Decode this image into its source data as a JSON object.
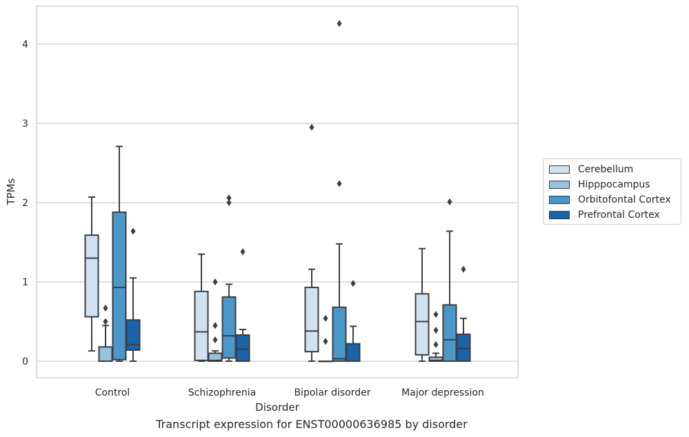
{
  "chart_data": {
    "type": "box",
    "xlabel": "Disorder",
    "ylabel": "TPMs",
    "caption": "Transcript expression for ENST00000636985 by disorder",
    "categories": [
      "Control",
      "Schizophrenia",
      "Bipolar disorder",
      "Major depression"
    ],
    "ylim": [
      -0.2,
      4.5
    ],
    "yticks": [
      0,
      1,
      2,
      3,
      4
    ],
    "grid": "horizontal",
    "legend_position": "right",
    "series": [
      {
        "name": "Cerebellum",
        "color": "#d0e1f2",
        "boxes": [
          {
            "whislo": 0.13,
            "q1": 0.56,
            "med": 1.3,
            "q3": 1.59,
            "whishi": 2.07,
            "fliers": []
          },
          {
            "whislo": 0.0,
            "q1": 0.01,
            "med": 0.37,
            "q3": 0.88,
            "whishi": 1.35,
            "fliers": []
          },
          {
            "whislo": 0.0,
            "q1": 0.12,
            "med": 0.38,
            "q3": 0.93,
            "whishi": 1.16,
            "fliers": [
              2.95
            ]
          },
          {
            "whislo": 0.0,
            "q1": 0.08,
            "med": 0.5,
            "q3": 0.85,
            "whishi": 1.42,
            "fliers": []
          }
        ]
      },
      {
        "name": "Hipppocampus",
        "color": "#94c4df",
        "boxes": [
          {
            "whislo": 0.0,
            "q1": 0.0,
            "med": 0.0,
            "q3": 0.18,
            "whishi": 0.45,
            "fliers": [
              0.5,
              0.67
            ]
          },
          {
            "whislo": 0.0,
            "q1": 0.0,
            "med": 0.01,
            "q3": 0.1,
            "whishi": 0.13,
            "fliers": [
              0.27,
              0.45,
              1.0
            ]
          },
          {
            "whislo": 0.0,
            "q1": 0.0,
            "med": 0.0,
            "q3": 0.0,
            "whishi": 0.0,
            "fliers": [
              0.25,
              0.54
            ]
          },
          {
            "whislo": 0.0,
            "q1": 0.0,
            "med": 0.01,
            "q3": 0.05,
            "whishi": 0.1,
            "fliers": [
              0.21,
              0.39,
              0.59
            ]
          }
        ]
      },
      {
        "name": "Orbitofontal Cortex",
        "color": "#4a98c9",
        "boxes": [
          {
            "whislo": 0.0,
            "q1": 0.02,
            "med": 0.93,
            "q3": 1.88,
            "whishi": 2.71,
            "fliers": []
          },
          {
            "whislo": 0.0,
            "q1": 0.04,
            "med": 0.32,
            "q3": 0.81,
            "whishi": 0.97,
            "fliers": [
              2.0,
              2.06
            ]
          },
          {
            "whislo": 0.0,
            "q1": 0.0,
            "med": 0.03,
            "q3": 0.68,
            "whishi": 1.48,
            "fliers": [
              2.24,
              4.26
            ]
          },
          {
            "whislo": 0.0,
            "q1": 0.0,
            "med": 0.27,
            "q3": 0.71,
            "whishi": 1.64,
            "fliers": [
              2.01
            ]
          }
        ]
      },
      {
        "name": "Prefrontal Cortex",
        "color": "#1764ab",
        "boxes": [
          {
            "whislo": 0.0,
            "q1": 0.14,
            "med": 0.21,
            "q3": 0.52,
            "whishi": 1.05,
            "fliers": [
              1.64
            ]
          },
          {
            "whislo": 0.0,
            "q1": 0.0,
            "med": 0.15,
            "q3": 0.33,
            "whishi": 0.4,
            "fliers": [
              1.38
            ]
          },
          {
            "whislo": 0.0,
            "q1": 0.0,
            "med": 0.0,
            "q3": 0.22,
            "whishi": 0.44,
            "fliers": [
              0.98
            ]
          },
          {
            "whislo": 0.0,
            "q1": 0.0,
            "med": 0.16,
            "q3": 0.34,
            "whishi": 0.54,
            "fliers": [
              1.16
            ]
          }
        ]
      }
    ]
  }
}
